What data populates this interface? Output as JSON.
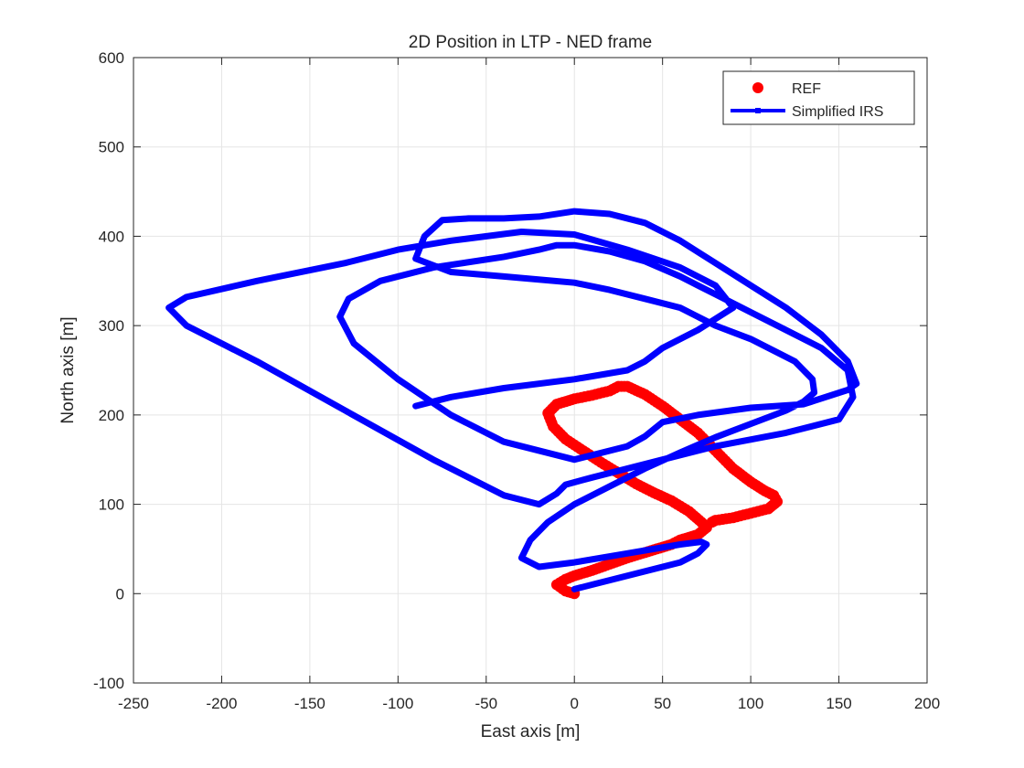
{
  "chart_data": {
    "type": "line",
    "title": "2D Position in LTP - NED frame",
    "xlabel": "East axis [m]",
    "ylabel": "North axis [m]",
    "xlim": [
      -250,
      200
    ],
    "ylim": [
      -100,
      600
    ],
    "xticks": [
      -250,
      -200,
      -150,
      -100,
      -50,
      0,
      50,
      100,
      150,
      200
    ],
    "yticks": [
      -100,
      0,
      100,
      200,
      300,
      400,
      500,
      600
    ],
    "xtick_labels": [
      "-250",
      "-200",
      "-150",
      "-100",
      "-50",
      "0",
      "50",
      "100",
      "150",
      "200"
    ],
    "ytick_labels": [
      "-100",
      "0",
      "100",
      "200",
      "300",
      "400",
      "500",
      "600"
    ],
    "grid": true,
    "legend_position": "top-right",
    "series": [
      {
        "name": "REF",
        "style": "markers",
        "color": "#ff0000",
        "x": [
          0,
          -5,
          -10,
          -5,
          0,
          10,
          20,
          30,
          40,
          50,
          55,
          60,
          70,
          75,
          72,
          65,
          55,
          45,
          35,
          25,
          15,
          5,
          -5,
          -12,
          -15,
          -10,
          0,
          10,
          20,
          25,
          30,
          40,
          50,
          60,
          70,
          80,
          90,
          100,
          108,
          113,
          115,
          110,
          100,
          90,
          80,
          78
        ],
        "y": [
          0,
          3,
          10,
          16,
          20,
          26,
          33,
          40,
          46,
          52,
          55,
          60,
          66,
          74,
          80,
          92,
          104,
          113,
          123,
          135,
          147,
          160,
          173,
          187,
          202,
          212,
          218,
          222,
          227,
          232,
          232,
          223,
          210,
          195,
          180,
          160,
          140,
          125,
          115,
          110,
          103,
          95,
          90,
          85,
          82,
          80
        ]
      },
      {
        "name": "Simplified IRS",
        "style": "line",
        "color": "#0000ff",
        "x": [
          0,
          20,
          40,
          60,
          70,
          75,
          72,
          60,
          30,
          0,
          -20,
          -30,
          -25,
          -15,
          0,
          20,
          40,
          60,
          80,
          100,
          120,
          130,
          136,
          135,
          125,
          100,
          80,
          70,
          60,
          40,
          20,
          0,
          -40,
          -70,
          -90,
          -85,
          -75,
          -60,
          -40,
          -20,
          0,
          20,
          40,
          60,
          80,
          100,
          120,
          140,
          155,
          160,
          155,
          130,
          100,
          70,
          50,
          40,
          30,
          0,
          -40,
          -70,
          -100,
          -125,
          -133,
          -128,
          -110,
          -80,
          -40,
          -20,
          -10,
          0,
          20,
          40,
          60,
          80,
          100,
          120,
          140,
          155,
          158,
          150,
          120,
          80,
          50,
          30,
          10,
          -5,
          -10,
          -20,
          -40,
          -80,
          -130,
          -180,
          -220,
          -230,
          -220,
          -180,
          -130,
          -100,
          -70,
          -30,
          0,
          30,
          60,
          80,
          90,
          70,
          50,
          40,
          30,
          0,
          -40,
          -70,
          -90
        ],
        "y": [
          5,
          15,
          25,
          35,
          45,
          55,
          58,
          55,
          45,
          35,
          30,
          40,
          60,
          80,
          100,
          120,
          140,
          158,
          175,
          190,
          205,
          215,
          225,
          240,
          260,
          285,
          300,
          310,
          320,
          330,
          340,
          348,
          355,
          360,
          375,
          400,
          418,
          420,
          420,
          422,
          428,
          425,
          415,
          395,
          370,
          345,
          320,
          290,
          260,
          235,
          228,
          212,
          208,
          200,
          192,
          176,
          165,
          150,
          170,
          200,
          240,
          280,
          310,
          330,
          350,
          365,
          377,
          385,
          390,
          390,
          383,
          372,
          355,
          335,
          315,
          295,
          275,
          250,
          220,
          195,
          180,
          165,
          150,
          140,
          130,
          122,
          112,
          100,
          110,
          150,
          205,
          260,
          300,
          320,
          332,
          350,
          370,
          385,
          395,
          405,
          402,
          385,
          365,
          345,
          320,
          295,
          275,
          260,
          250,
          240,
          230,
          220,
          210
        ]
      }
    ]
  }
}
